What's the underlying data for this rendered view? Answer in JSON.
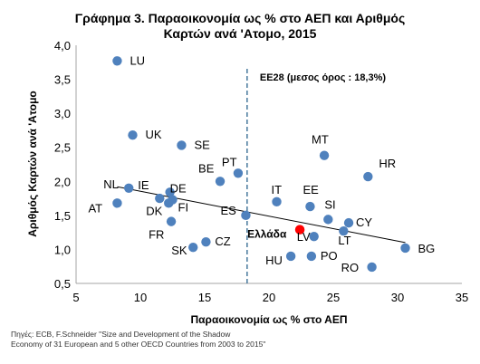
{
  "chart_data": {
    "type": "scatter",
    "title": [
      "Γράφημα 3. Παραοικονομία ως % στο ΑΕΠ και Αριθμός",
      "Καρτών ανά 'Ατομο, 2015"
    ],
    "xlabel": "Παραοικονομία ως % στο ΑΕΠ",
    "ylabel": "Αριθμός Καρτών ανά 'Ατομο",
    "xlim": [
      5,
      35
    ],
    "ylim": [
      0.5,
      4.0
    ],
    "xticks": [
      "5",
      "10",
      "15",
      "20",
      "25",
      "30",
      "35"
    ],
    "yticks": [
      "0,5",
      "1,0",
      "1,5",
      "2,0",
      "2,5",
      "3,0",
      "3,5",
      "4,0"
    ],
    "grid": false,
    "marker_color": "#4f81bd",
    "highlight_color": "#ff0000",
    "points": [
      {
        "label": "LU",
        "x": 8.2,
        "y": 3.77
      },
      {
        "label": "UK",
        "x": 9.4,
        "y": 2.68
      },
      {
        "label": "SE",
        "x": 13.2,
        "y": 2.53
      },
      {
        "label": "PT",
        "x": 17.6,
        "y": 2.12
      },
      {
        "label": "BE",
        "x": 16.2,
        "y": 2.0
      },
      {
        "label": "MT",
        "x": 24.3,
        "y": 2.38
      },
      {
        "label": "HR",
        "x": 27.7,
        "y": 2.07
      },
      {
        "label": "NL",
        "x": 9.1,
        "y": 1.9
      },
      {
        "label": "IE",
        "x": 11.5,
        "y": 1.75
      },
      {
        "label": "DE",
        "x": 12.3,
        "y": 1.84
      },
      {
        "label": "FI",
        "x": 12.5,
        "y": 1.73
      },
      {
        "label": "AT",
        "x": 8.2,
        "y": 1.68
      },
      {
        "label": "DK",
        "x": 12.2,
        "y": 1.68
      },
      {
        "label": "FR",
        "x": 12.4,
        "y": 1.41
      },
      {
        "label": "ES",
        "x": 18.2,
        "y": 1.5
      },
      {
        "label": "IT",
        "x": 20.6,
        "y": 1.7
      },
      {
        "label": "EE",
        "x": 23.2,
        "y": 1.63
      },
      {
        "label": "SI",
        "x": 24.6,
        "y": 1.44
      },
      {
        "label": "CY",
        "x": 26.2,
        "y": 1.39
      },
      {
        "label": "LT",
        "x": 25.8,
        "y": 1.27
      },
      {
        "label": "LV",
        "x": 23.5,
        "y": 1.19
      },
      {
        "label": "BG",
        "x": 30.6,
        "y": 1.02
      },
      {
        "label": "CZ",
        "x": 15.1,
        "y": 1.11
      },
      {
        "label": "SK",
        "x": 14.1,
        "y": 1.03
      },
      {
        "label": "HU",
        "x": 21.7,
        "y": 0.9
      },
      {
        "label": "PO",
        "x": 23.3,
        "y": 0.9
      },
      {
        "label": "RO",
        "x": 28.0,
        "y": 0.74
      },
      {
        "label": "Ελλάδα",
        "x": 22.4,
        "y": 1.29,
        "highlight": true
      }
    ],
    "trendline": {
      "x": [
        8.2,
        30.6
      ],
      "y": [
        1.92,
        1.1
      ]
    },
    "reference_line": {
      "x": 18.3,
      "label": "EE28 (μεσος όρος : 18,3%)"
    }
  },
  "source": [
    "Πηγές: ECB, F.Schneider  \"Size and Development of the Shadow",
    " Economy of 31 European and 5 other OECD Countries from 2003 to 2015\""
  ]
}
